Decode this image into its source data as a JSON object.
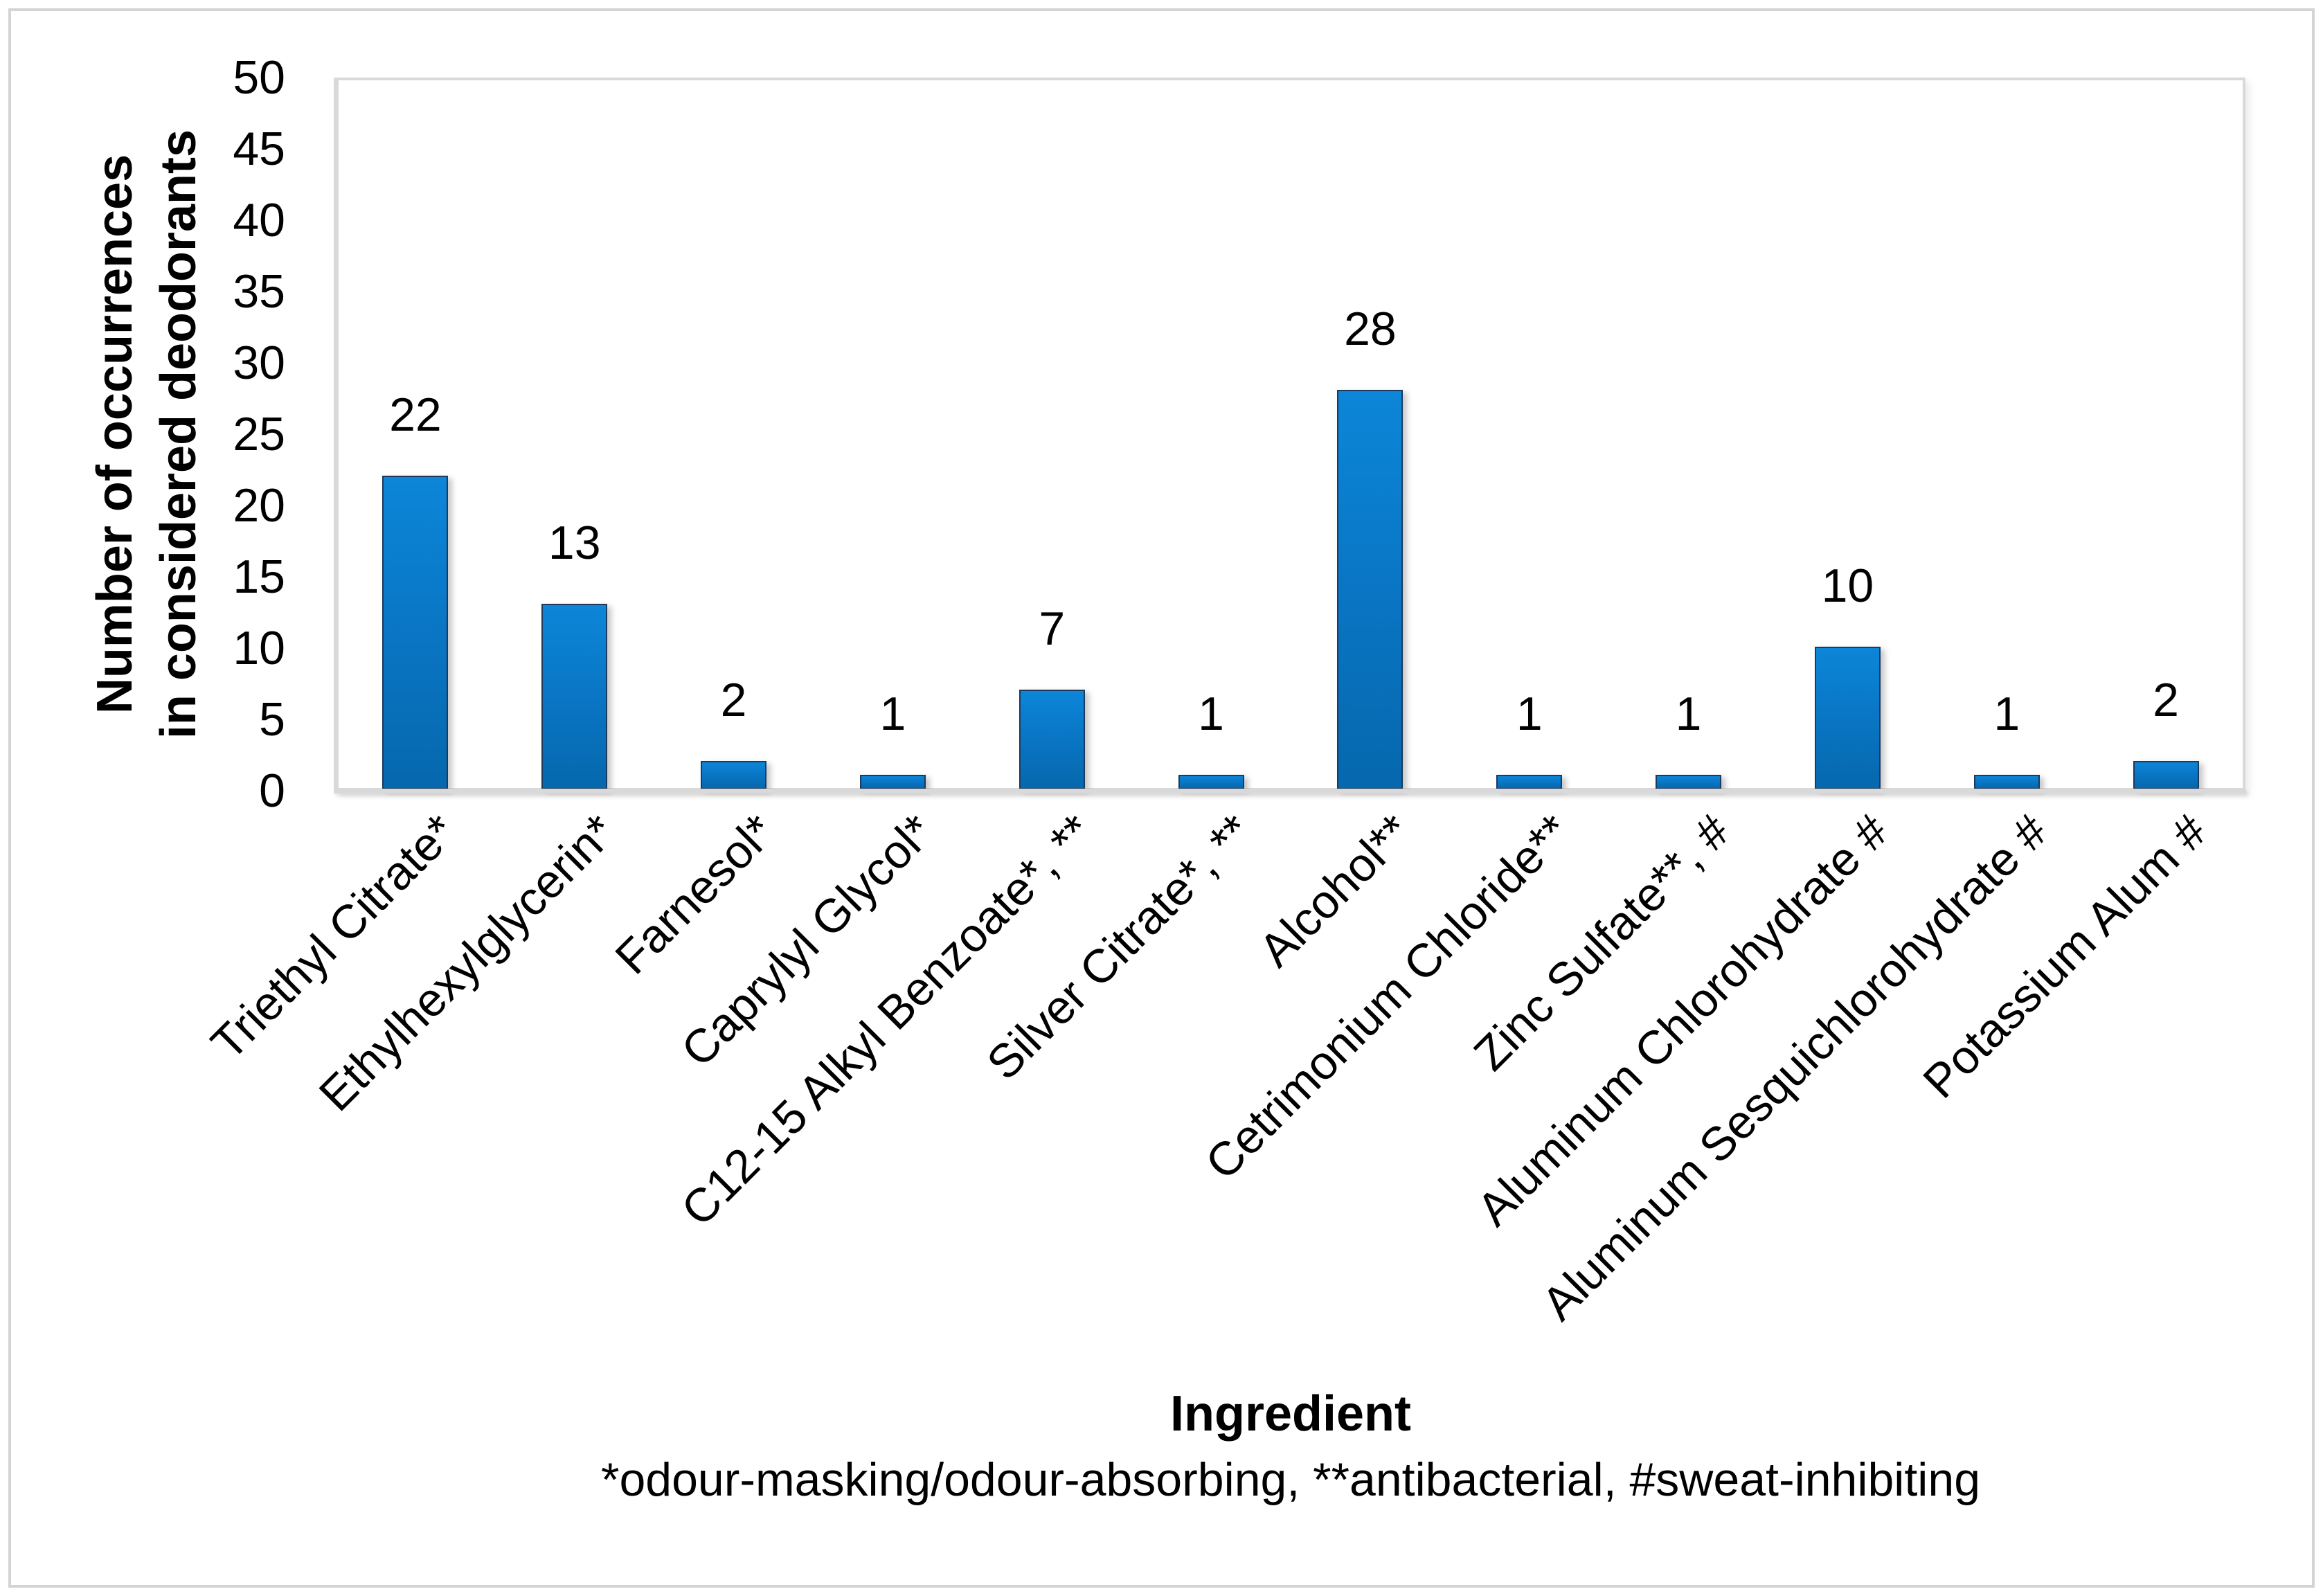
{
  "chart_data": {
    "type": "bar",
    "title": "",
    "categories": [
      "Triethyl Citrate*",
      "Ethylhexylglycerin*",
      "Farnesol*",
      "Caprylyl Glycol*",
      "C12-15 Alkyl Benzoate*, **",
      "Silver Citrate*, **",
      "Alcohol**",
      "Cetrimonium Chloride**",
      "Zinc Sulfate**, #",
      "Aluminum Chlorohydrate #",
      "Aluminum Sesquichlorohydrate #",
      "Potassium Alum #"
    ],
    "values": [
      22,
      13,
      2,
      1,
      7,
      1,
      28,
      1,
      1,
      10,
      1,
      2
    ],
    "xlabel": "Ingredient",
    "ylabel_lines": [
      "Number of occurrences",
      "in considered deodorants"
    ],
    "footnote": "*odour-masking/odour-absorbing, **antibacterial, #sweat-inhibiting",
    "axis": {
      "ymin": 0,
      "ymax": 50,
      "ystep": 5
    },
    "grid": false,
    "legend": "none",
    "colors": {
      "bar_fill_top": "#0c86d8",
      "bar_fill_bottom": "#0668ad",
      "bar_border": "#1b3a5e",
      "axis_line": "#d9d9d9",
      "text": "#000000"
    }
  }
}
